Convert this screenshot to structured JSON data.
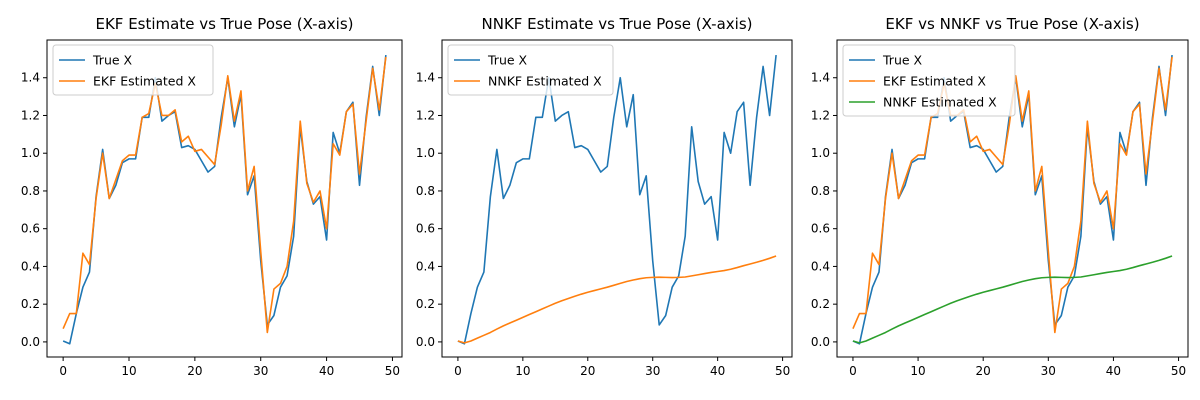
{
  "colors": {
    "true_x": "#1f77b4",
    "ekf": "#ff7f0e",
    "nnkf": "#2ca02c",
    "axis": "#000000",
    "legend_border": "#cccccc"
  },
  "chart_data": [
    {
      "type": "line",
      "title": "EKF Estimate vs True Pose (X-axis)",
      "xlim": [
        -2.45,
        51.45
      ],
      "ylim": [
        -0.08,
        1.6
      ],
      "x_ticks": [
        0,
        10,
        20,
        30,
        40,
        50
      ],
      "y_ticks": [
        0.0,
        0.2,
        0.4,
        0.6,
        0.8,
        1.0,
        1.2,
        1.4
      ],
      "x_tick_labels": [
        "0",
        "10",
        "20",
        "30",
        "40",
        "50"
      ],
      "y_tick_labels": [
        "0.0",
        "0.2",
        "0.4",
        "0.6",
        "0.8",
        "1.0",
        "1.2",
        "1.4"
      ],
      "grid": false,
      "legend_position": "top-left",
      "series": [
        {
          "name": "True X",
          "color_key": "true_x"
        },
        {
          "name": "EKF Estimated X",
          "color_key": "ekf"
        }
      ]
    },
    {
      "type": "line",
      "title": "NNKF Estimate vs True Pose (X-axis)",
      "xlim": [
        -2.45,
        51.45
      ],
      "ylim": [
        -0.08,
        1.6
      ],
      "x_ticks": [
        0,
        10,
        20,
        30,
        40,
        50
      ],
      "y_ticks": [
        0.0,
        0.2,
        0.4,
        0.6,
        0.8,
        1.0,
        1.2,
        1.4
      ],
      "x_tick_labels": [
        "0",
        "10",
        "20",
        "30",
        "40",
        "50"
      ],
      "y_tick_labels": [
        "0.0",
        "0.2",
        "0.4",
        "0.6",
        "0.8",
        "1.0",
        "1.2",
        "1.4"
      ],
      "grid": false,
      "legend_position": "top-left",
      "series": [
        {
          "name": "True X",
          "color_key": "true_x"
        },
        {
          "name": "NNKF Estimated X",
          "color_key": "ekf"
        }
      ]
    },
    {
      "type": "line",
      "title": "EKF vs NNKF vs True Pose (X-axis)",
      "xlim": [
        -2.45,
        51.45
      ],
      "ylim": [
        -0.08,
        1.6
      ],
      "x_ticks": [
        0,
        10,
        20,
        30,
        40,
        50
      ],
      "y_ticks": [
        0.0,
        0.2,
        0.4,
        0.6,
        0.8,
        1.0,
        1.2,
        1.4
      ],
      "x_tick_labels": [
        "0",
        "10",
        "20",
        "30",
        "40",
        "50"
      ],
      "y_tick_labels": [
        "0.0",
        "0.2",
        "0.4",
        "0.6",
        "0.8",
        "1.0",
        "1.2",
        "1.4"
      ],
      "grid": false,
      "legend_position": "top-left",
      "series": [
        {
          "name": "True X",
          "color_key": "true_x"
        },
        {
          "name": "EKF Estimated X",
          "color_key": "ekf"
        },
        {
          "name": "NNKF Estimated X",
          "color_key": "nnkf"
        }
      ]
    }
  ],
  "series_values": {
    "true_x": [
      0.005,
      -0.01,
      0.15,
      0.29,
      0.37,
      0.77,
      1.02,
      0.76,
      0.83,
      0.95,
      0.97,
      0.97,
      1.19,
      1.19,
      1.4,
      1.17,
      1.2,
      1.22,
      1.03,
      1.04,
      1.02,
      0.96,
      0.9,
      0.93,
      1.19,
      1.4,
      1.14,
      1.31,
      0.78,
      0.88,
      0.43,
      0.09,
      0.14,
      0.29,
      0.35,
      0.56,
      1.14,
      0.85,
      0.73,
      0.77,
      0.54,
      1.11,
      1.0,
      1.22,
      1.27,
      0.83,
      1.19,
      1.46,
      1.2,
      1.52
    ],
    "ekf": [
      0.07,
      0.15,
      0.15,
      0.47,
      0.41,
      0.76,
      1.0,
      0.76,
      0.86,
      0.96,
      0.99,
      0.99,
      1.19,
      1.21,
      1.37,
      1.2,
      1.2,
      1.23,
      1.06,
      1.09,
      1.01,
      1.02,
      0.98,
      0.94,
      1.15,
      1.41,
      1.17,
      1.33,
      0.8,
      0.93,
      0.48,
      0.05,
      0.28,
      0.31,
      0.4,
      0.64,
      1.17,
      0.84,
      0.74,
      0.8,
      0.6,
      1.05,
      0.99,
      1.22,
      1.26,
      0.89,
      1.17,
      1.45,
      1.23,
      1.51
    ],
    "nnkf": [
      0.005,
      -0.005,
      0.005,
      0.02,
      0.035,
      0.05,
      0.068,
      0.085,
      0.1,
      0.115,
      0.13,
      0.145,
      0.16,
      0.175,
      0.19,
      0.205,
      0.218,
      0.23,
      0.242,
      0.253,
      0.263,
      0.272,
      0.281,
      0.29,
      0.3,
      0.31,
      0.32,
      0.328,
      0.335,
      0.34,
      0.342,
      0.343,
      0.342,
      0.341,
      0.342,
      0.344,
      0.35,
      0.356,
      0.362,
      0.368,
      0.373,
      0.378,
      0.385,
      0.394,
      0.404,
      0.413,
      0.422,
      0.432,
      0.443,
      0.455
    ]
  }
}
